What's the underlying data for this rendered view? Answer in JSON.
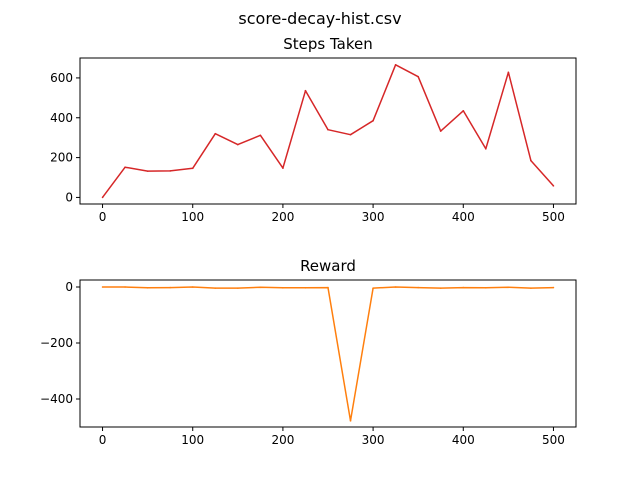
{
  "figure_title": "score-decay-hist.csv",
  "chart_data": [
    {
      "type": "line",
      "title": "Steps Taken",
      "xlabel": "",
      "ylabel": "",
      "xlim": [
        -25,
        525
      ],
      "ylim": [
        -33,
        700
      ],
      "xticks": [
        0,
        100,
        200,
        300,
        400,
        500
      ],
      "yticks": [
        0,
        200,
        400,
        600
      ],
      "ytick_labels": [
        "0",
        "200",
        "400",
        "600"
      ],
      "grid": false,
      "color": "#d62728",
      "x": [
        0,
        25,
        50,
        75,
        100,
        125,
        150,
        175,
        200,
        225,
        250,
        275,
        300,
        325,
        350,
        375,
        400,
        425,
        450,
        475,
        500
      ],
      "y": [
        0,
        152,
        132,
        133,
        146,
        320,
        265,
        312,
        147,
        536,
        340,
        315,
        385,
        666,
        606,
        333,
        435,
        244,
        628,
        185,
        58
      ]
    },
    {
      "type": "line",
      "title": "Reward",
      "xlabel": "",
      "ylabel": "",
      "xlim": [
        -25,
        525
      ],
      "ylim": [
        -500,
        25
      ],
      "xticks": [
        0,
        100,
        200,
        300,
        400,
        500
      ],
      "yticks": [
        0,
        -200,
        -400
      ],
      "ytick_labels": [
        "0",
        "−200",
        "−400"
      ],
      "grid": false,
      "color": "#ff7f0e",
      "x": [
        0,
        25,
        50,
        75,
        100,
        125,
        150,
        175,
        200,
        225,
        250,
        275,
        300,
        325,
        350,
        375,
        400,
        425,
        450,
        475,
        500
      ],
      "y": [
        0,
        0,
        -3,
        -2,
        0,
        -4,
        -4,
        -1,
        -3,
        -3,
        -2,
        -478,
        -4,
        0,
        -2,
        -4,
        -2,
        -3,
        -1,
        -4,
        -2
      ]
    }
  ]
}
